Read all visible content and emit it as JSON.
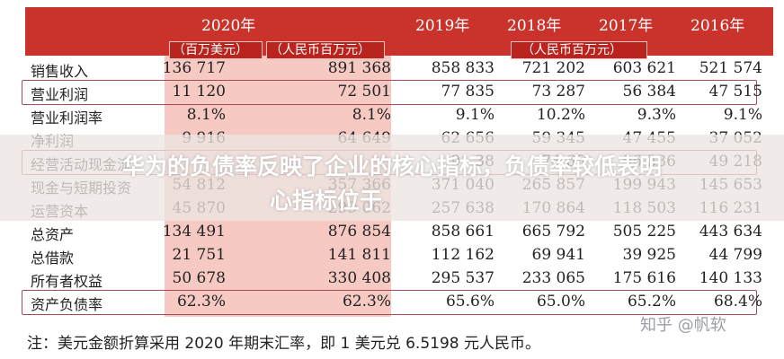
{
  "header": {
    "year_2020": "2020年",
    "year_2019": "2019年",
    "year_2018": "2018年",
    "year_2017": "2017年",
    "year_2016": "2016年",
    "unit_usd": "（百万美元）",
    "unit_rmb_2020": "（人民币百万元）",
    "unit_rmb_prior": "（人民币百万元）"
  },
  "rows": [
    {
      "label": "销售收入",
      "usd2020": "136 717",
      "rmb2020": "891 368",
      "y2019": "858 833",
      "y2018": "721 202",
      "y2017": "603 621",
      "y2016": "521 574"
    },
    {
      "label": "营业利润",
      "usd2020": "11 120",
      "rmb2020": "72 501",
      "y2019": "77 835",
      "y2018": "73 287",
      "y2017": "56 384",
      "y2016": "47 515"
    },
    {
      "label": "营业利润率",
      "usd2020": "8.1%",
      "rmb2020": "8.1%",
      "y2019": "9.1%",
      "y2018": "10.2%",
      "y2017": "9.3%",
      "y2016": "9.1%"
    },
    {
      "label": "净利润",
      "usd2020": "9 916",
      "rmb2020": "64 649",
      "y2019": "62 656",
      "y2018": "59 345",
      "y2017": "47 455",
      "y2016": "37 052"
    },
    {
      "label": "经营活动现金流",
      "usd2020": "",
      "rmb2020": "",
      "y2019": "91 38",
      "y2018": "74 65",
      "y2017": "96 336",
      "y2016": "49 218"
    },
    {
      "label": "现金与短期投资",
      "usd2020": "54 812",
      "rmb2020": "357 366",
      "y2019": "371 040",
      "y2018": "265 857",
      "y2017": "199 943",
      "y2016": "145 653"
    },
    {
      "label": "运营资本",
      "usd2020": "45 870",
      "rmb2020": "299 062",
      "y2019": "257 638",
      "y2018": "170 864",
      "y2017": "118 503",
      "y2016": "116 231"
    },
    {
      "label": "总资产",
      "usd2020": "134 491",
      "rmb2020": "876 854",
      "y2019": "858 661",
      "y2018": "665 792",
      "y2017": "505 225",
      "y2016": "443 634"
    },
    {
      "label": "总借款",
      "usd2020": "21 751",
      "rmb2020": "141 811",
      "y2019": "112 162",
      "y2018": "69 941",
      "y2017": "39 925",
      "y2016": "44 799"
    },
    {
      "label": "所有者权益",
      "usd2020": "50 678",
      "rmb2020": "330 408",
      "y2019": "295 537",
      "y2018": "233 065",
      "y2017": "175 616",
      "y2016": "140 133"
    },
    {
      "label": "资产负债率",
      "usd2020": "62.3%",
      "rmb2020": "62.3%",
      "y2019": "65.6%",
      "y2018": "65.0%",
      "y2017": "65.2%",
      "y2016": "68.4%"
    }
  ],
  "banner": {
    "line1": "华为的负债率反映了企业的核心指标，负债率较低表明",
    "line2": "心指标位于"
  },
  "note": "注：美元金额折算采用 2020 年期末汇率，即 1 美元兑 6.5198 元人民币。",
  "watermark": "知乎 @帆软",
  "colors": {
    "header_red": "#c9332b",
    "highlight_pink": "#f6c9c3",
    "row_border": "#a74a53"
  }
}
